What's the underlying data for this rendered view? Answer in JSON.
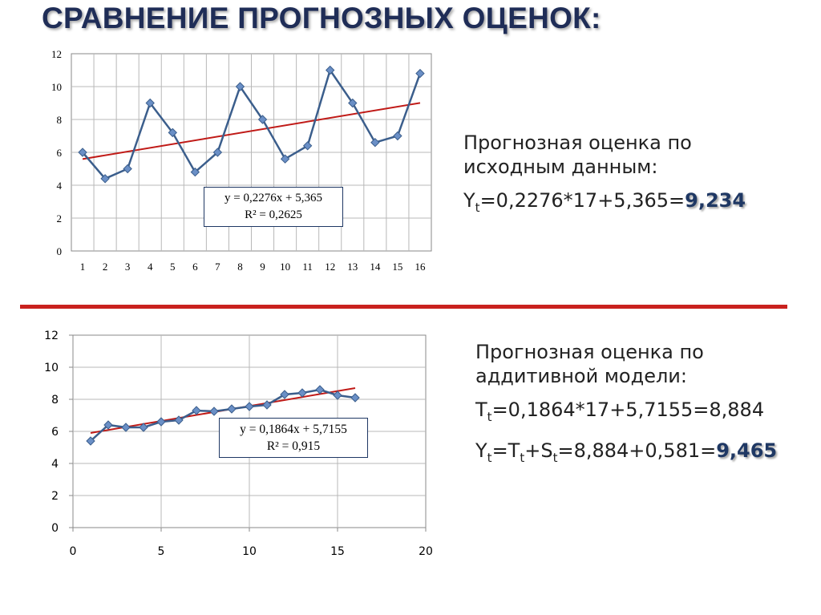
{
  "title": "СРАВНЕНИЕ ПРОГНОЗНЫХ ОЦЕНОК:",
  "chart_data": [
    {
      "type": "line",
      "categories": [
        "1",
        "2",
        "3",
        "4",
        "5",
        "6",
        "7",
        "8",
        "9",
        "10",
        "11",
        "12",
        "13",
        "14",
        "15",
        "16"
      ],
      "series": [
        {
          "values": [
            6.0,
            4.4,
            5.0,
            9.0,
            7.2,
            4.8,
            6.0,
            10.0,
            8.0,
            5.6,
            6.4,
            11.0,
            9.0,
            6.6,
            7.0,
            10.8
          ]
        }
      ],
      "trendline": {
        "slope": 0.2276,
        "intercept": 5.365
      },
      "equation": "y = 0,2276x + 5,365",
      "r2": "R² = 0,2625",
      "yticks": [
        "0",
        "2",
        "4",
        "6",
        "8",
        "10",
        "12"
      ],
      "ylim": [
        0,
        12
      ],
      "grid": true,
      "colors": {
        "series": "#3b5e8c",
        "marker": "#6a8fc6",
        "trend": "#c01a17",
        "grid": "#b8b8b8"
      }
    },
    {
      "type": "scatter",
      "x": [
        1,
        2,
        3,
        4,
        5,
        6,
        7,
        8,
        9,
        10,
        11,
        12,
        13,
        14,
        15,
        16
      ],
      "series": [
        {
          "values": [
            5.4,
            6.4,
            6.25,
            6.25,
            6.6,
            6.7,
            7.3,
            7.25,
            7.4,
            7.55,
            7.65,
            8.3,
            8.4,
            8.6,
            8.25,
            8.1
          ]
        }
      ],
      "trendline": {
        "slope": 0.1864,
        "intercept": 5.7155
      },
      "equation": "y = 0,1864x + 5,7155",
      "r2": "R² = 0,915",
      "xticks": [
        "0",
        "5",
        "10",
        "15",
        "20"
      ],
      "yticks": [
        "0",
        "2",
        "4",
        "6",
        "8",
        "10",
        "12"
      ],
      "xlim": [
        0,
        20
      ],
      "ylim": [
        0,
        12
      ],
      "grid": true,
      "colors": {
        "series": "#3b5e8c",
        "marker": "#6a8fc6",
        "trend": "#c01a17",
        "grid": "#b8b8b8"
      }
    }
  ],
  "top_text": {
    "line1": "Прогнозная оценка по",
    "line2": "исходным данным:",
    "formula": {
      "y": "Y",
      "t": "t",
      "expr": "=0,2276*17+5,365=",
      "result": "9,234"
    }
  },
  "bottom_text": {
    "line1": "Прогнозная оценка по",
    "line2": "аддитивной модели:",
    "formula1": {
      "T": "T",
      "t": "t",
      "expr": "=0,1864*17+5,7155=8,884"
    },
    "formula2": {
      "Y": "Y",
      "t1": "t",
      "eq1": "=T",
      "t2": "t",
      "plus": "+S",
      "t3": "t",
      "expr": "=8,884+0,581=",
      "result": "9,465"
    }
  }
}
